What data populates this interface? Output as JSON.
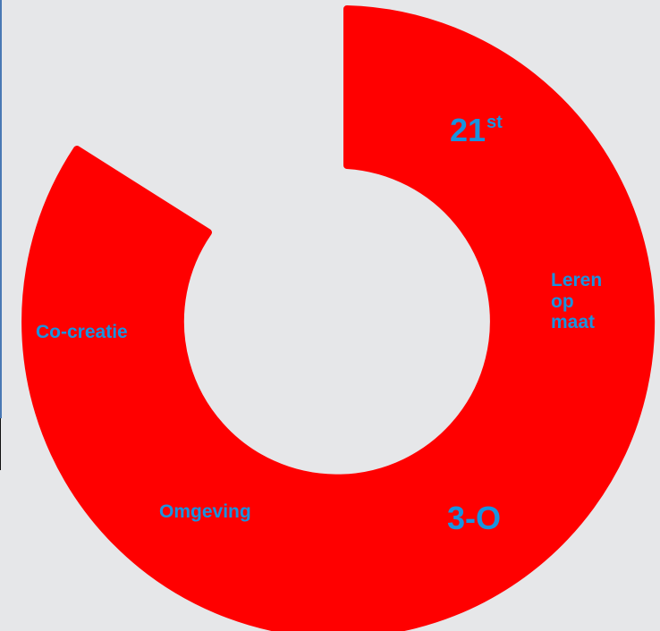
{
  "diagram": {
    "labels": {
      "twenty_first_main": "21",
      "twenty_first_sup": "st",
      "leren_line1": "Leren",
      "leren_line2": "op",
      "leren_line3": "maat",
      "cocreatie": "Co-creatie",
      "omgeving": "Omgeving",
      "three_o": "3-O"
    },
    "colors": {
      "ring": "#ff0000",
      "label": "#1993df",
      "background": "#e6e7e9"
    }
  }
}
